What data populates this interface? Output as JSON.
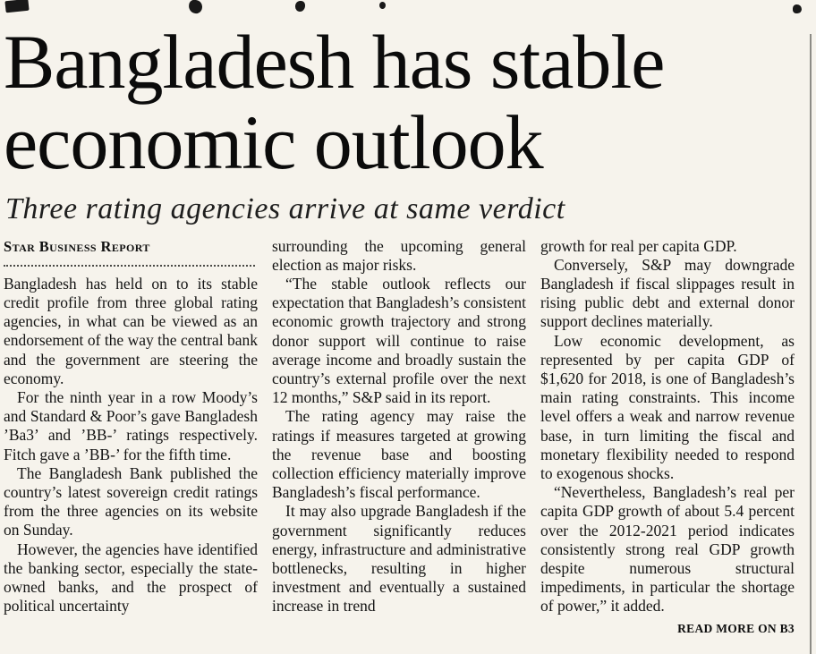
{
  "article": {
    "headline": "Bangladesh has stable economic outlook",
    "subheadline": "Three rating agencies arrive at same verdict",
    "byline": "Star Business Report",
    "read_more": "READ MORE ON B3",
    "columns": [
      {
        "paragraphs": [
          "Bangladesh has held on to its stable credit profile from three global rating agencies, in what can be viewed as an endorsement of the way the central bank and the government are steering the economy.",
          "For the ninth year in a row Moody’s and Standard & Poor’s gave Bangladesh ’Ba3’ and ’BB-’ ratings respectively. Fitch gave a ’BB-’ for the fifth time.",
          "The Bangladesh Bank published the country’s latest sovereign credit ratings from the three agencies on its website on Sunday.",
          "However, the agencies have identified the banking sector, especially the state-owned banks, and the prospect of political uncertainty"
        ]
      },
      {
        "paragraphs": [
          "surrounding the upcoming general election as major risks.",
          "“The stable outlook reflects our expectation that Bangladesh’s consistent economic growth trajectory and strong donor support will continue to raise average income and broadly sustain the country’s external profile over the next 12 months,” S&P said in its report.",
          "The rating agency may raise the ratings if measures targeted at growing the revenue base and boosting collection efficiency materially improve Bangladesh’s fiscal performance.",
          "It may also upgrade Bangladesh if the government significantly reduces energy, infrastructure and administrative bottlenecks, resulting in higher investment and eventually a sustained increase in trend"
        ]
      },
      {
        "paragraphs": [
          "growth for real per capita GDP.",
          "Conversely, S&P may downgrade Bangladesh if fiscal slippages result in rising public debt and external donor support declines materially.",
          "Low economic development, as represented by per capita GDP of $1,620 for 2018, is one of Bangladesh’s main rating constraints. This income level offers a weak and narrow revenue base, in turn limiting the fiscal and monetary flexibility needed to respond to exogenous shocks.",
          "“Nevertheless, Bangladesh’s real per capita GDP growth of about 5.4 percent over the 2012-2021 period indicates consistently strong real GDP growth despite numerous structural impediments, in particular the shortage of power,” it added."
        ]
      }
    ]
  }
}
